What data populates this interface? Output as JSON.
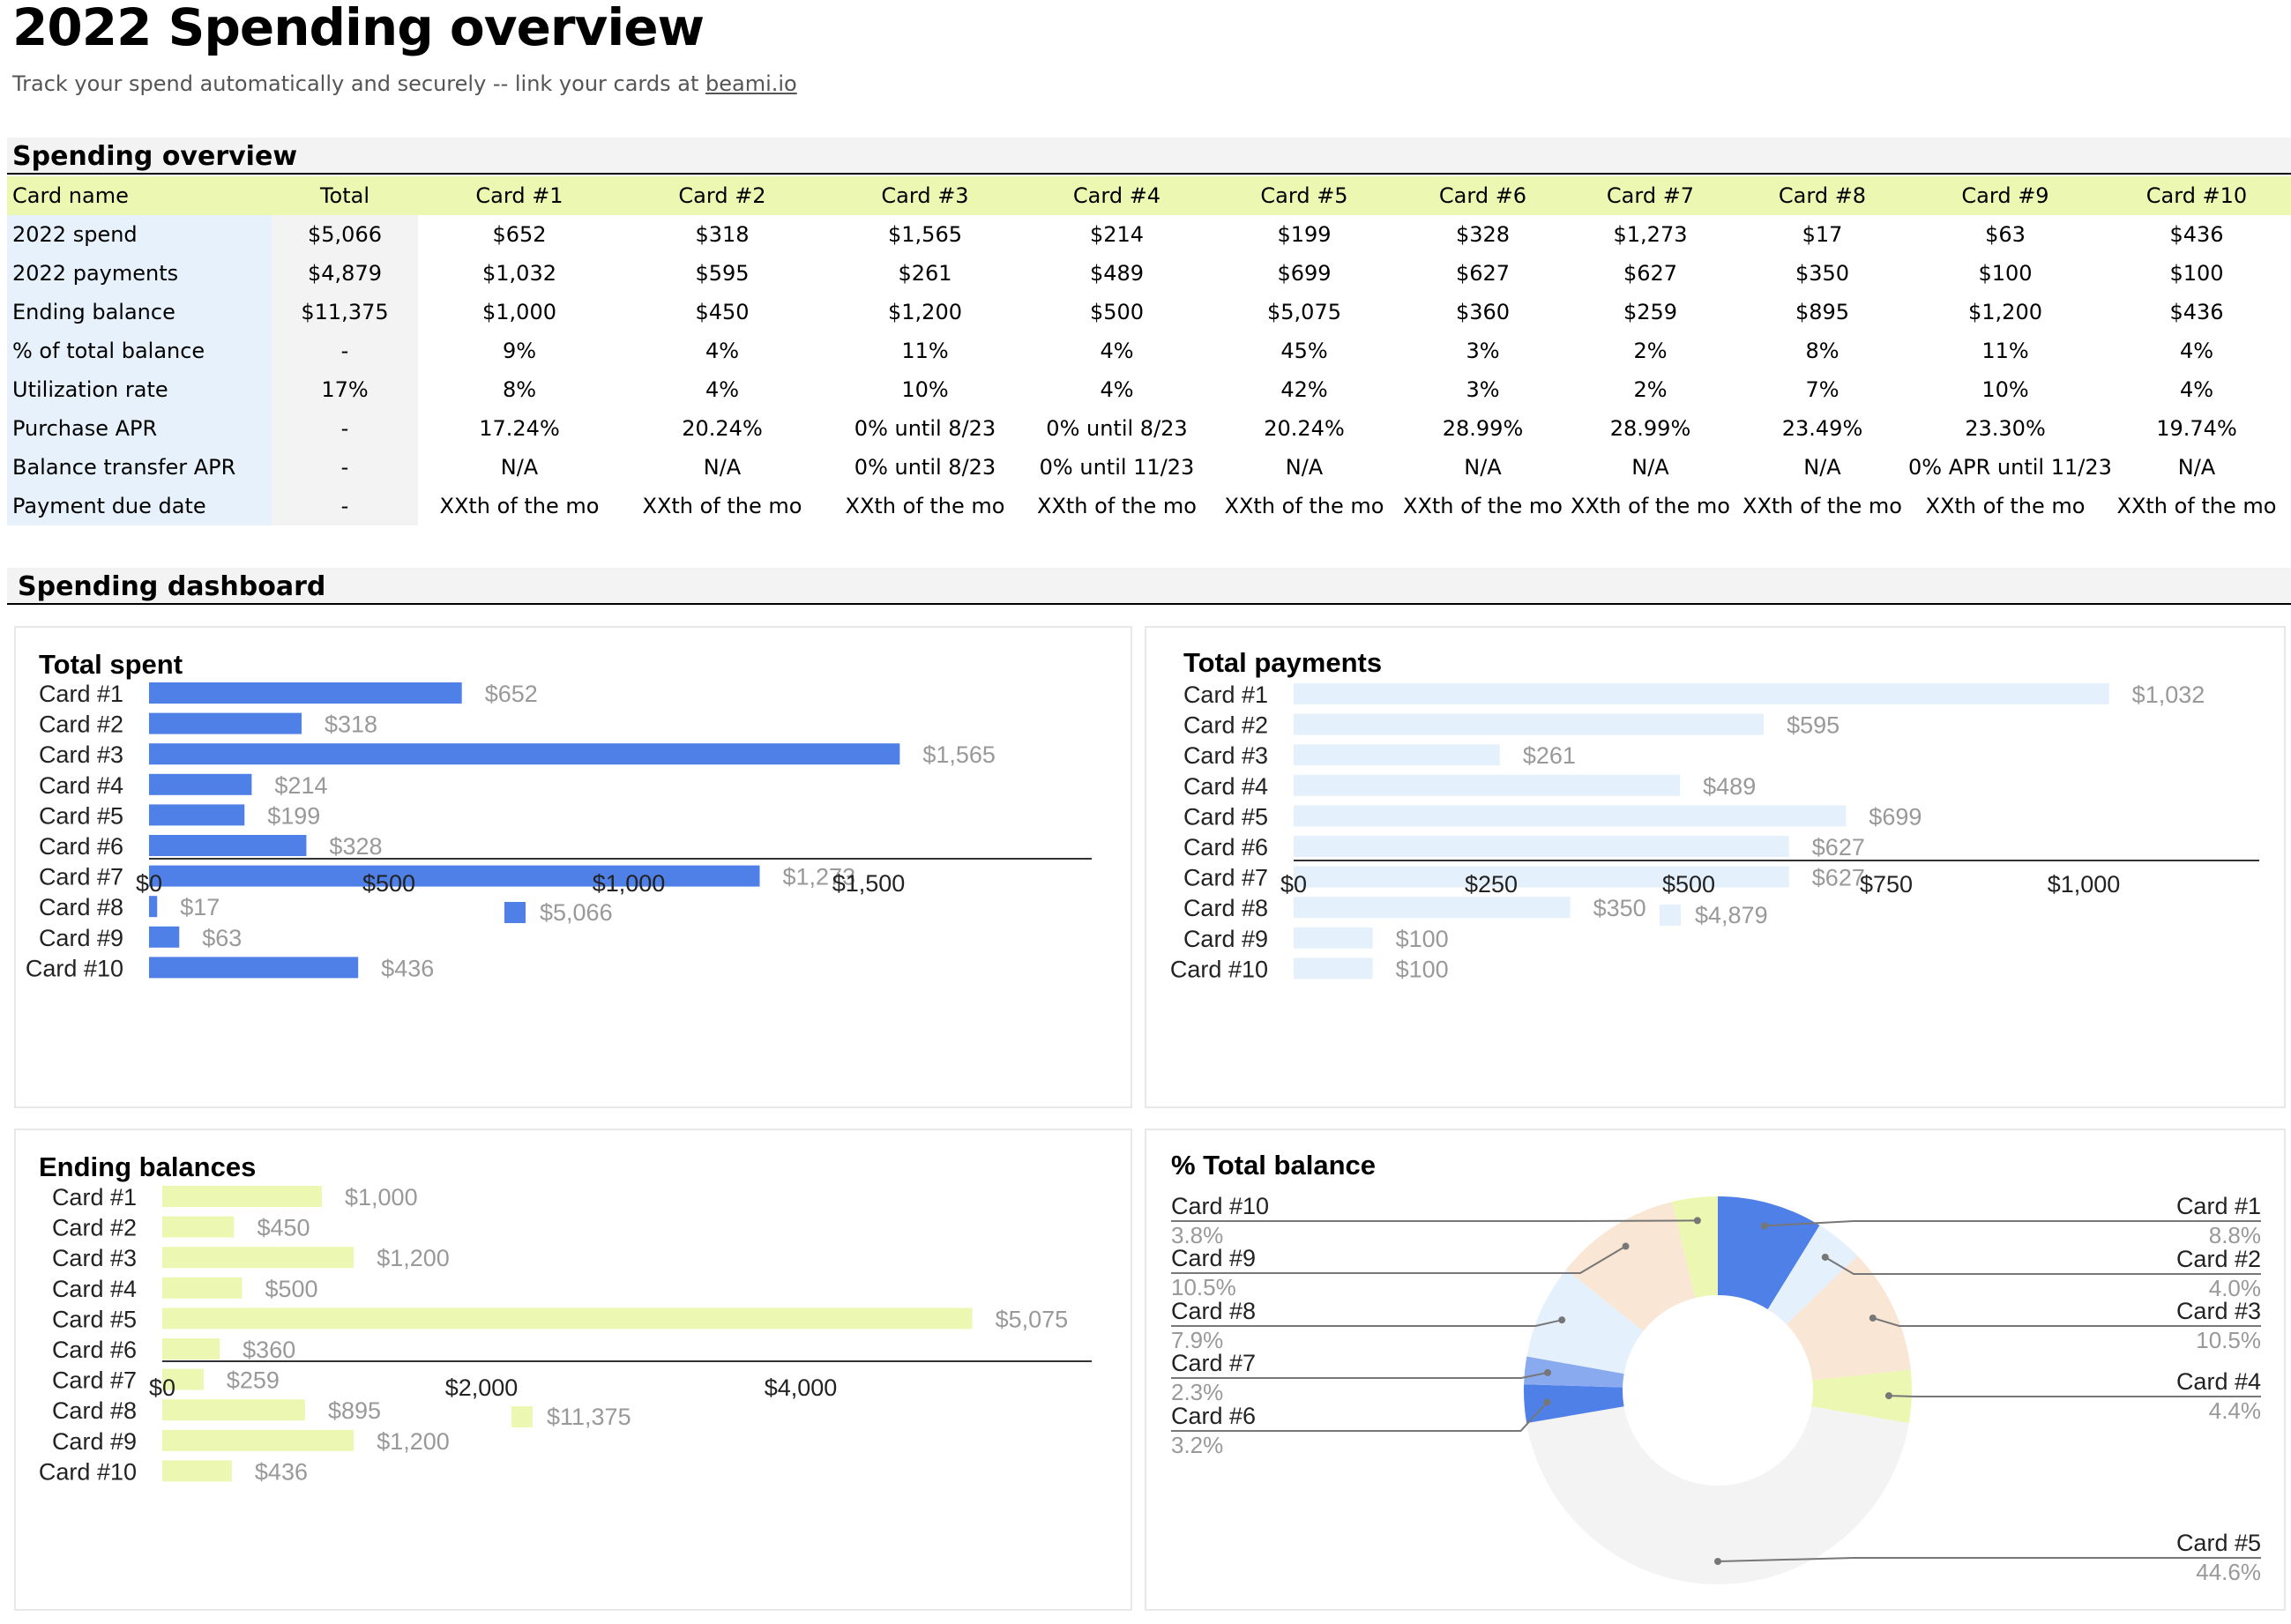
{
  "page": {
    "title": "2022 Spending overview",
    "subtitle_prefix": "Track your spend automatically and securely -- link your cards at ",
    "subtitle_link": "beami.io"
  },
  "overview": {
    "section_title": "Spending overview",
    "header": [
      "Card name",
      "Total",
      "Card #1",
      "Card #2",
      "Card #3",
      "Card #4",
      "Card #5",
      "Card #6",
      "Card #7",
      "Card #8",
      "Card #9",
      "Card #10"
    ],
    "rows": [
      [
        "2022 spend",
        "$5,066",
        "$652",
        "$318",
        "$1,565",
        "$214",
        "$199",
        "$328",
        "$1,273",
        "$17",
        "$63",
        "$436"
      ],
      [
        "2022 payments",
        "$4,879",
        "$1,032",
        "$595",
        "$261",
        "$489",
        "$699",
        "$627",
        "$627",
        "$350",
        "$100",
        "$100"
      ],
      [
        "Ending balance",
        "$11,375",
        "$1,000",
        "$450",
        "$1,200",
        "$500",
        "$5,075",
        "$360",
        "$259",
        "$895",
        "$1,200",
        "$436"
      ],
      [
        "% of total balance",
        "-",
        "9%",
        "4%",
        "11%",
        "4%",
        "45%",
        "3%",
        "2%",
        "8%",
        "11%",
        "4%"
      ],
      [
        "Utilization rate",
        "17%",
        "8%",
        "4%",
        "10%",
        "4%",
        "42%",
        "3%",
        "2%",
        "7%",
        "10%",
        "4%"
      ],
      [
        "Purchase APR",
        "-",
        "17.24%",
        "20.24%",
        "0% until 8/23",
        "0% until 8/23",
        "20.24%",
        "28.99%",
        "28.99%",
        "23.49%",
        "23.30%",
        "19.74%"
      ],
      [
        "Balance transfer APR",
        "-",
        "N/A",
        "N/A",
        "0% until 8/23",
        "0% until 11/23",
        "N/A",
        "N/A",
        "N/A",
        "N/A",
        "0% APR until 11/23",
        "N/A"
      ],
      [
        "Payment due date",
        "-",
        "XXth of the mo",
        "XXth of the mo",
        "XXth of the mo",
        "XXth of the mo",
        "XXth of the mo",
        "XXth of the mo",
        "XXth of the mo",
        "XXth of the mo",
        "XXth of the mo",
        "XXth of the mo"
      ]
    ]
  },
  "dashboard": {
    "section_title": "Spending dashboard"
  },
  "chart_data": [
    {
      "type": "bar",
      "orientation": "horizontal",
      "title": "Total spent",
      "categories": [
        "Card #1",
        "Card #2",
        "Card #3",
        "Card #4",
        "Card #5",
        "Card #6",
        "Card #7",
        "Card #8",
        "Card #9",
        "Card #10"
      ],
      "values": [
        652,
        318,
        1565,
        214,
        199,
        328,
        1273,
        17,
        63,
        436
      ],
      "value_labels": [
        "$652",
        "$318",
        "$1,565",
        "$214",
        "$199",
        "$328",
        "$1,273",
        "$17",
        "$63",
        "$436"
      ],
      "xlim": [
        0,
        2000
      ],
      "ticks": [
        0,
        500,
        1000,
        1500
      ],
      "tick_labels": [
        "$0",
        "$500",
        "$1,000",
        "$1,500"
      ],
      "legend": "$5,066",
      "legend_position": "bottom",
      "color": "#4f80e8"
    },
    {
      "type": "bar",
      "orientation": "horizontal",
      "title": "Total payments",
      "categories": [
        "Card #1",
        "Card #2",
        "Card #3",
        "Card #4",
        "Card #5",
        "Card #6",
        "Card #7",
        "Card #8",
        "Card #9",
        "Card #10"
      ],
      "values": [
        1032,
        595,
        261,
        489,
        699,
        627,
        627,
        350,
        100,
        100
      ],
      "value_labels": [
        "$1,032",
        "$595",
        "$261",
        "$489",
        "$699",
        "$627",
        "$627",
        "$350",
        "$100",
        "$100"
      ],
      "xlim": [
        0,
        1250
      ],
      "ticks": [
        0,
        250,
        500,
        750,
        1000
      ],
      "tick_labels": [
        "$0",
        "$250",
        "$500",
        "$750",
        "$1,000"
      ],
      "legend": "$4,879",
      "legend_position": "bottom",
      "color": "#e4f1fd"
    },
    {
      "type": "bar",
      "orientation": "horizontal",
      "title": "Ending balances",
      "categories": [
        "Card #1",
        "Card #2",
        "Card #3",
        "Card #4",
        "Card #5",
        "Card #6",
        "Card #7",
        "Card #8",
        "Card #9",
        "Card #10"
      ],
      "values": [
        1000,
        450,
        1200,
        500,
        5075,
        360,
        259,
        895,
        1200,
        436
      ],
      "value_labels": [
        "$1,000",
        "$450",
        "$1,200",
        "$500",
        "$5,075",
        "$360",
        "$259",
        "$895",
        "$1,200",
        "$436"
      ],
      "xlim": [
        0,
        6000
      ],
      "ticks": [
        0,
        2000,
        4000
      ],
      "tick_labels": [
        "$0",
        "$2,000",
        "$4,000"
      ],
      "legend": "$11,375",
      "legend_position": "bottom",
      "color": "#ecf8b1"
    },
    {
      "type": "pie",
      "donut": true,
      "title": "% Total balance",
      "categories": [
        "Card #1",
        "Card #2",
        "Card #3",
        "Card #4",
        "Card #5",
        "Card #6",
        "Card #7",
        "Card #8",
        "Card #9",
        "Card #10"
      ],
      "values": [
        8.8,
        4.0,
        10.5,
        4.4,
        44.6,
        3.2,
        2.3,
        7.9,
        10.5,
        3.8
      ],
      "value_labels": [
        "8.8%",
        "4.0%",
        "10.5%",
        "4.4%",
        "44.6%",
        "3.2%",
        "2.3%",
        "7.9%",
        "10.5%",
        "3.8%"
      ],
      "colors": [
        "#4f80e8",
        "#e4f1fd",
        "#f9e6d4",
        "#ecf8b1",
        "#f3f3f3",
        "#4f80e8",
        "#8aaaf0",
        "#e4f1fd",
        "#f9e6d4",
        "#ecf8b1"
      ],
      "label_style": "callout"
    }
  ]
}
